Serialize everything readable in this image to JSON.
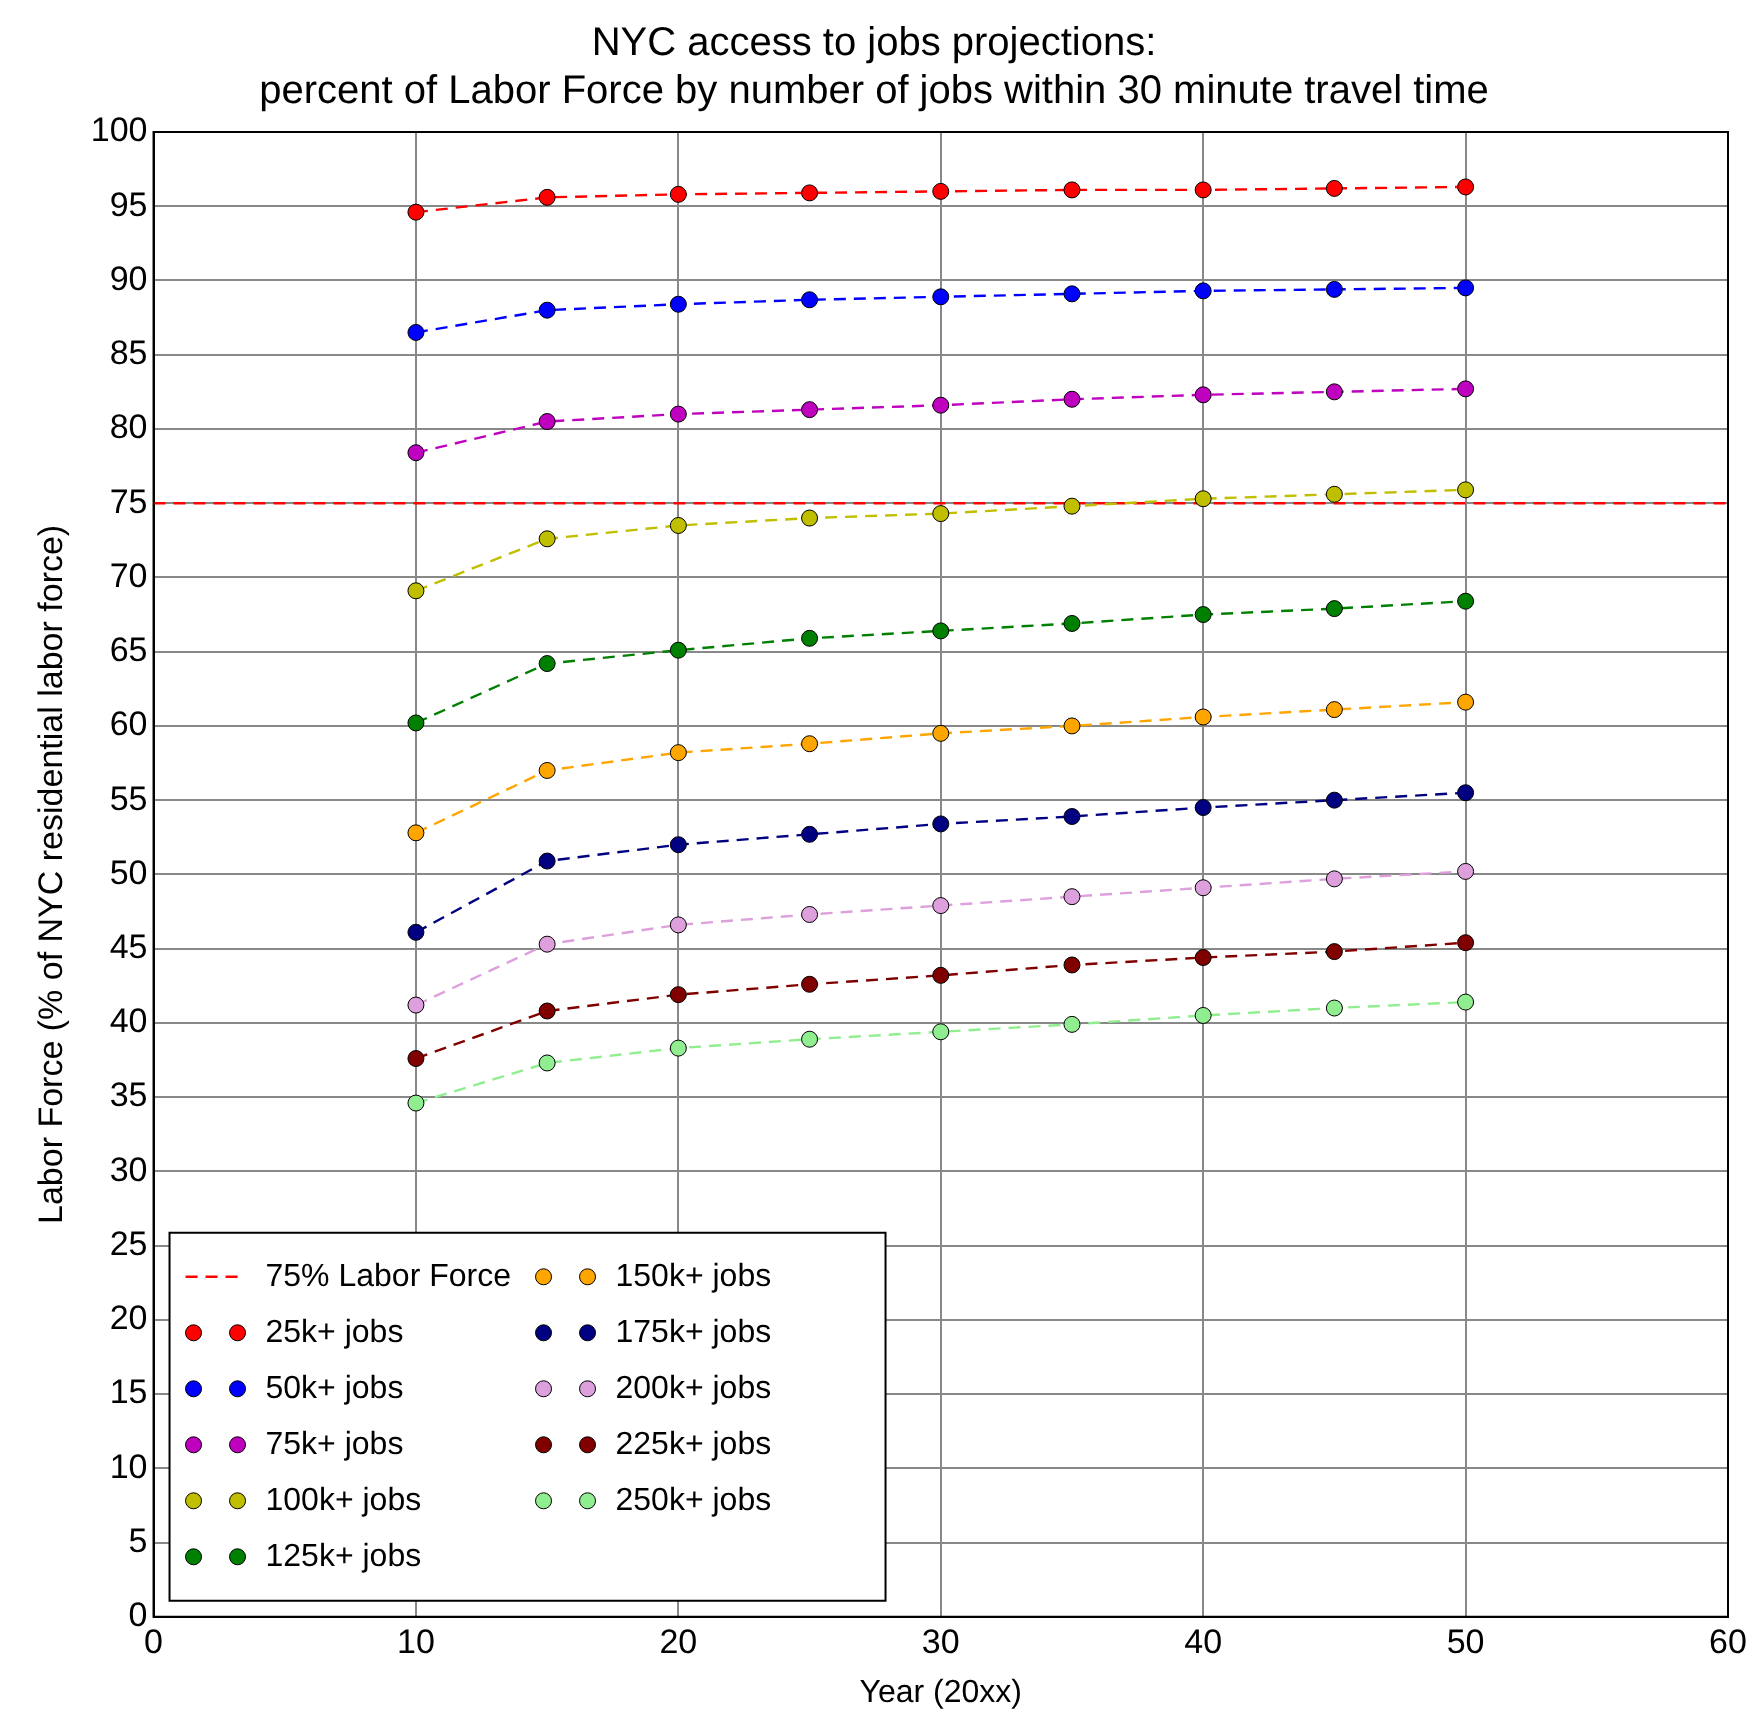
{
  "chart_data": {
    "type": "line",
    "title": [
      "NYC access to jobs projections:",
      "percent of Labor Force by number of jobs within 30 minute travel time"
    ],
    "xlabel": "Year (20xx)",
    "ylabel": "Labor Force (% of NYC residential labor force)",
    "x": [
      10,
      15,
      20,
      25,
      30,
      35,
      40,
      45,
      50
    ],
    "series": [
      {
        "name": "25k+ jobs",
        "color": "#ff0000",
        "values": [
          94.6,
          95.6,
          95.8,
          95.9,
          96.0,
          96.1,
          96.1,
          96.2,
          96.3
        ]
      },
      {
        "name": "50k+ jobs",
        "color": "#0000ff",
        "values": [
          86.5,
          88.0,
          88.4,
          88.7,
          88.9,
          89.1,
          89.3,
          89.4,
          89.5
        ]
      },
      {
        "name": "75k+ jobs",
        "color": "#bf00bf",
        "values": [
          78.4,
          80.5,
          81.0,
          81.3,
          81.6,
          82.0,
          82.3,
          82.5,
          82.7
        ]
      },
      {
        "name": "100k+ jobs",
        "color": "#bfbf00",
        "values": [
          69.1,
          72.6,
          73.5,
          74.0,
          74.3,
          74.8,
          75.3,
          75.6,
          75.9
        ]
      },
      {
        "name": "125k+ jobs",
        "color": "#008000",
        "values": [
          60.2,
          64.2,
          65.1,
          65.9,
          66.4,
          66.9,
          67.5,
          67.9,
          68.4
        ]
      },
      {
        "name": "150k+ jobs",
        "color": "#ffa500",
        "values": [
          52.8,
          57.0,
          58.2,
          58.8,
          59.5,
          60.0,
          60.6,
          61.1,
          61.6
        ]
      },
      {
        "name": "175k+ jobs",
        "color": "#000080",
        "values": [
          46.1,
          50.9,
          52.0,
          52.7,
          53.4,
          53.9,
          54.5,
          55.0,
          55.5
        ]
      },
      {
        "name": "200k+ jobs",
        "color": "#dda0dd",
        "values": [
          41.2,
          45.3,
          46.6,
          47.3,
          47.9,
          48.5,
          49.1,
          49.7,
          50.2
        ]
      },
      {
        "name": "225k+ jobs",
        "color": "#800000",
        "values": [
          37.6,
          40.8,
          41.9,
          42.6,
          43.2,
          43.9,
          44.4,
          44.8,
          45.4
        ]
      },
      {
        "name": "250k+ jobs",
        "color": "#90ee90",
        "values": [
          34.6,
          37.3,
          38.3,
          38.9,
          39.4,
          39.9,
          40.5,
          41.0,
          41.4
        ]
      }
    ],
    "ref_lines": [
      {
        "axis": "y",
        "value": 75,
        "label": "75% Labor Force",
        "color": "#ff0000",
        "line_style": "dashed"
      }
    ],
    "xlim": [
      0,
      60
    ],
    "xticks": [
      0,
      10,
      20,
      30,
      40,
      50,
      60
    ],
    "ylim": [
      0,
      100
    ],
    "yticks": [
      0,
      5,
      10,
      15,
      20,
      25,
      30,
      35,
      40,
      45,
      50,
      55,
      60,
      65,
      70,
      75,
      80,
      85,
      90,
      95,
      100
    ],
    "grid": true,
    "legend": "bottom left",
    "marker": "circle",
    "line_style": "dashed"
  }
}
